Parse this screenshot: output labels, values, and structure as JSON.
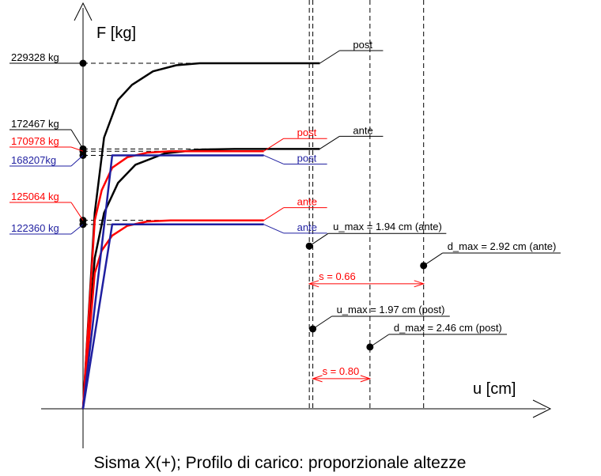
{
  "chart_data": {
    "type": "line",
    "title": "Sisma X(+); Profilo di carico: proporzionale altezze",
    "xlabel": "u [cm]",
    "ylabel": "F [kg]",
    "grid": false,
    "colors": {
      "black": "#000000",
      "red": "#ff0000",
      "blue": "#1f1fa0"
    },
    "curves": [
      {
        "color": "#000000",
        "points": [
          [
            0,
            0
          ],
          [
            0.1,
            130000
          ],
          [
            0.18,
            180000
          ],
          [
            0.3,
            205000
          ],
          [
            0.42,
            215000
          ],
          [
            0.6,
            224000
          ],
          [
            0.8,
            228000
          ],
          [
            1.0,
            229328
          ],
          [
            2.03,
            229328
          ]
        ]
      },
      {
        "color": "#000000",
        "points": [
          [
            0,
            0
          ],
          [
            0.1,
            100000
          ],
          [
            0.18,
            130000
          ],
          [
            0.3,
            150000
          ],
          [
            0.45,
            162000
          ],
          [
            0.7,
            169500
          ],
          [
            1.0,
            172000
          ],
          [
            1.3,
            172467
          ],
          [
            2.03,
            172467
          ]
        ]
      },
      {
        "color": "#ff0000",
        "points": [
          [
            0,
            0
          ],
          [
            0.1,
            125000
          ],
          [
            0.16,
            145000
          ],
          [
            0.25,
            160000
          ],
          [
            0.38,
            167000
          ],
          [
            0.55,
            170000
          ],
          [
            0.75,
            170978
          ],
          [
            1.55,
            170978
          ]
        ]
      },
      {
        "color": "#ff0000",
        "points": [
          [
            0,
            0
          ],
          [
            0.1,
            90000
          ],
          [
            0.16,
            105000
          ],
          [
            0.25,
            115000
          ],
          [
            0.38,
            121500
          ],
          [
            0.55,
            124300
          ],
          [
            0.75,
            125064
          ],
          [
            1.55,
            125064
          ]
        ]
      },
      {
        "color": "#1f1fa0",
        "points": [
          [
            0,
            0
          ],
          [
            0.25,
            168207
          ],
          [
            1.55,
            168207
          ]
        ]
      },
      {
        "color": "#1f1fa0",
        "points": [
          [
            0,
            0
          ],
          [
            0.25,
            122360
          ],
          [
            1.55,
            122360
          ]
        ]
      }
    ],
    "force_markers": [
      {
        "value": 229328,
        "text": "229328 kg",
        "color": "#000000"
      },
      {
        "value": 172467,
        "text": "172467 kg",
        "color": "#000000"
      },
      {
        "value": 170978,
        "text": "170978 kg",
        "color": "#ff0000"
      },
      {
        "value": 168207,
        "text": "168207kg",
        "color": "#1f1fa0"
      },
      {
        "value": 125064,
        "text": "125064 kg",
        "color": "#ff0000"
      },
      {
        "value": 122360,
        "text": "122360 kg",
        "color": "#1f1fa0"
      }
    ],
    "curve_tags": [
      {
        "text": "post",
        "color": "#000000",
        "x": 2.03,
        "y": 229328,
        "dir": "up"
      },
      {
        "text": "ante",
        "color": "#000000",
        "x": 2.03,
        "y": 172467,
        "dir": "up"
      },
      {
        "text": "post",
        "color": "#ff0000",
        "x": 1.55,
        "y": 170978,
        "dir": "up"
      },
      {
        "text": "post",
        "color": "#1f1fa0",
        "x": 1.55,
        "y": 168207,
        "dir": "down"
      },
      {
        "text": "ante",
        "color": "#ff0000",
        "x": 1.55,
        "y": 125064,
        "dir": "up"
      },
      {
        "text": "ante",
        "color": "#1f1fa0",
        "x": 1.55,
        "y": 122360,
        "dir": "down"
      }
    ],
    "vertical_lines": [
      1.94,
      1.97,
      2.46,
      2.92
    ],
    "points": [
      {
        "x": 1.94,
        "y": 108000,
        "text": "u_max = 1.94 cm (ante)",
        "side": "right"
      },
      {
        "x": 2.92,
        "y": 95000,
        "text": "d_max = 2.92 cm (ante)",
        "side": "right"
      },
      {
        "x": 1.97,
        "y": 53000,
        "text": "u_max = 1.97 cm (post)",
        "side": "right"
      },
      {
        "x": 2.46,
        "y": 41000,
        "text": "d_max = 2.46 cm (post)",
        "side": "right"
      }
    ],
    "spans": [
      {
        "from": 1.94,
        "to": 2.92,
        "y": 83000,
        "text": "s = 0.66",
        "color": "#ff0000"
      },
      {
        "from": 1.97,
        "to": 2.46,
        "y": 20000,
        "text": "s = 0.80",
        "color": "#ff0000"
      }
    ]
  }
}
